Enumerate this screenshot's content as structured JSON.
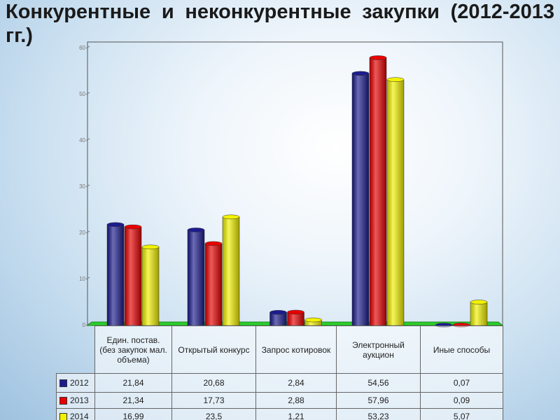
{
  "chart_data": {
    "type": "bar",
    "title": "Конкурентные и неконкурентные закупки (2012-2013 гг.)",
    "categories": [
      "Един. постав. (без закупок мал. объема)",
      "Открытый конкурс",
      "Запрос котировок",
      "Электронный аукцион",
      "Иные способы"
    ],
    "series": [
      {
        "name": "2012",
        "color": "#1c1c8e",
        "values": [
          21.84,
          20.68,
          2.84,
          54.56,
          0.07
        ],
        "value_labels": [
          "21,84",
          "20,68",
          "2,84",
          "54,56",
          "0,07"
        ]
      },
      {
        "name": "2013",
        "color": "#e80000",
        "values": [
          21.34,
          17.73,
          2.88,
          57.96,
          0.09
        ],
        "value_labels": [
          "21,34",
          "17,73",
          "2,88",
          "57,96",
          "0,09"
        ]
      },
      {
        "name": "2014",
        "color": "#f2f200",
        "values": [
          16.99,
          23.5,
          1.21,
          53.23,
          5.07
        ],
        "value_labels": [
          "16,99",
          "23,5",
          "1,21",
          "53,23",
          "5,07"
        ]
      }
    ],
    "ylim": [
      0,
      60
    ],
    "yticks": [
      0,
      10,
      20,
      30,
      40,
      50,
      60
    ],
    "grid": false
  }
}
